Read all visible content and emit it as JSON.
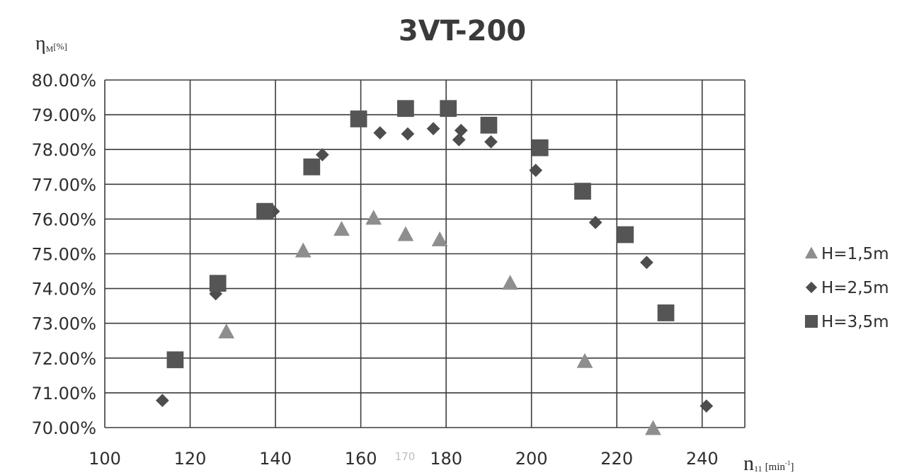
{
  "chart_data": {
    "type": "scatter",
    "title": "3VT-200",
    "ylabel": "η",
    "ylabel_sub": "M",
    "ylabel_unit": "[%]",
    "xlabel": "n",
    "xlabel_sub": "11",
    "xlabel_unit": "[min",
    "xlabel_unit_sup": "-1",
    "xlabel_unit_end": "]",
    "xlim": [
      100,
      250
    ],
    "ylim": [
      70.0,
      80.0
    ],
    "x_ticks": [
      100,
      120,
      140,
      160,
      180,
      200,
      220,
      240
    ],
    "x_tick_labels": [
      "100",
      "120",
      "140",
      "160",
      "180",
      "200",
      "220",
      "240"
    ],
    "y_ticks": [
      70,
      71,
      72,
      73,
      74,
      75,
      76,
      77,
      78,
      79,
      80
    ],
    "y_tick_labels": [
      "70.00%",
      "71.00%",
      "72.00%",
      "73.00%",
      "74.00%",
      "75.00%",
      "76.00%",
      "77.00%",
      "78.00%",
      "79.00%",
      "80.00%"
    ],
    "grid": true,
    "legend_position": "right",
    "annotation": "170",
    "series": [
      {
        "name": "H=1,5m",
        "marker": "triangle",
        "color": "#8e8e8e",
        "points": [
          [
            128.5,
            72.75
          ],
          [
            146.5,
            75.08
          ],
          [
            155.5,
            75.7
          ],
          [
            163,
            76.02
          ],
          [
            170.5,
            75.55
          ],
          [
            178.5,
            75.4
          ],
          [
            195,
            74.15
          ],
          [
            212.5,
            71.9
          ],
          [
            228.5,
            69.97
          ]
        ]
      },
      {
        "name": "H=2,5m",
        "marker": "diamond",
        "color": "#4d4d4d",
        "points": [
          [
            113.5,
            70.78
          ],
          [
            126,
            73.85
          ],
          [
            139.5,
            76.22
          ],
          [
            151,
            77.85
          ],
          [
            164.5,
            78.48
          ],
          [
            171,
            78.45
          ],
          [
            177,
            78.6
          ],
          [
            183,
            78.28
          ],
          [
            183.5,
            78.55
          ],
          [
            190.5,
            78.22
          ],
          [
            201,
            77.4
          ],
          [
            215,
            75.9
          ],
          [
            227,
            74.75
          ],
          [
            241,
            70.62
          ]
        ]
      },
      {
        "name": "H=3,5m",
        "marker": "square",
        "color": "#555555",
        "points": [
          [
            116.5,
            71.95
          ],
          [
            126.5,
            74.15
          ],
          [
            137.5,
            76.22
          ],
          [
            148.5,
            77.5
          ],
          [
            159.5,
            78.88
          ],
          [
            170.5,
            79.18
          ],
          [
            180.5,
            79.18
          ],
          [
            190,
            78.7
          ],
          [
            202,
            78.05
          ],
          [
            212,
            76.8
          ],
          [
            222,
            75.55
          ],
          [
            231.5,
            73.3
          ]
        ]
      }
    ]
  }
}
